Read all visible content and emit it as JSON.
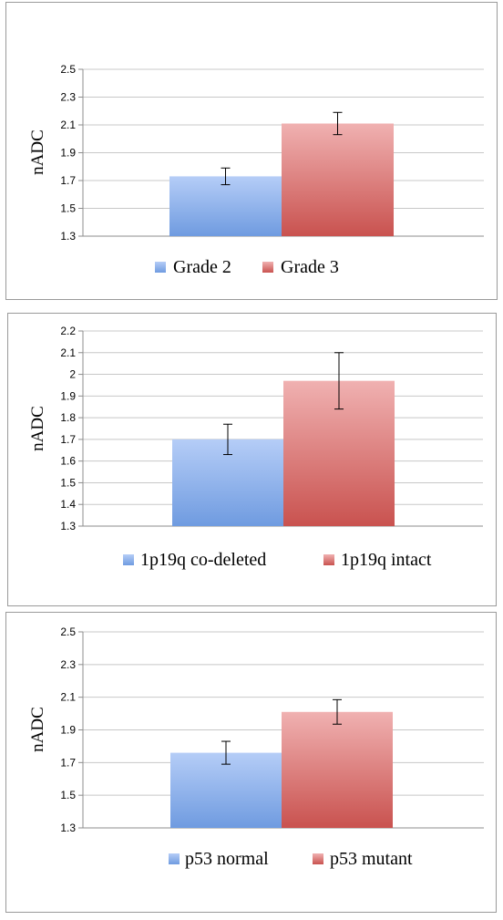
{
  "colors": {
    "blue_top": "#b5cdf7",
    "blue_bottom": "#6f9be0",
    "red_top": "#f0b1b1",
    "red_bottom": "#c9524f",
    "grid": "#c8c8c8",
    "axis": "#8c8c8c"
  },
  "chart_data": [
    {
      "type": "bar",
      "ylabel": "nADC",
      "ylim": [
        1.3,
        2.5
      ],
      "yticks": [
        "2.5",
        "2.3",
        "2.1",
        "1.9",
        "1.7",
        "1.5",
        "1.3"
      ],
      "grid": true,
      "legend": "bottom",
      "series": [
        {
          "name": "Grade 2",
          "value": 1.73,
          "error": 0.06,
          "color": "blue"
        },
        {
          "name": "Grade 3",
          "value": 2.11,
          "error": 0.08,
          "color": "red"
        }
      ]
    },
    {
      "type": "bar",
      "ylabel": "nADC",
      "ylim": [
        1.3,
        2.2
      ],
      "yticks": [
        "2.2",
        "2.1",
        "2",
        "1.9",
        "1.8",
        "1.7",
        "1.6",
        "1.5",
        "1.4",
        "1.3"
      ],
      "grid": true,
      "legend": "bottom",
      "series": [
        {
          "name": "1p19q co-deleted",
          "value": 1.7,
          "error": 0.07,
          "color": "blue"
        },
        {
          "name": "1p19q intact",
          "value": 1.97,
          "error": 0.13,
          "color": "red"
        }
      ]
    },
    {
      "type": "bar",
      "ylabel": "nADC",
      "ylim": [
        1.3,
        2.5
      ],
      "yticks": [
        "2.5",
        "2.3",
        "2.1",
        "1.9",
        "1.7",
        "1.5",
        "1.3"
      ],
      "grid": true,
      "legend": "bottom",
      "series": [
        {
          "name": "p53 normal",
          "value": 1.76,
          "error": 0.07,
          "color": "blue"
        },
        {
          "name": "p53 mutant",
          "value": 2.01,
          "error": 0.075,
          "color": "red"
        }
      ]
    }
  ]
}
